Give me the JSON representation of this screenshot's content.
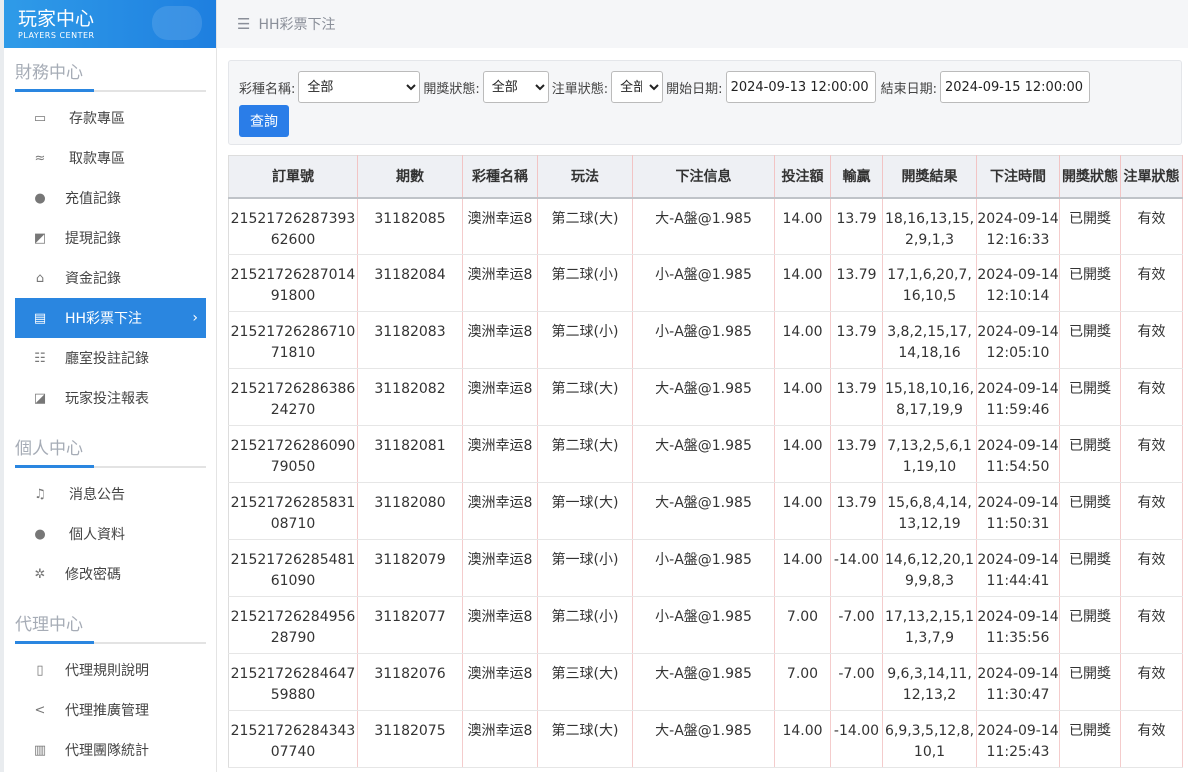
{
  "logo": {
    "title": "玩家中心",
    "subtitle": "PLAYERS CENTER"
  },
  "sidebar": {
    "sections": [
      {
        "title": "財務中心",
        "items": [
          {
            "label": "存款專區",
            "icon": "card-icon",
            "glyph": "▭",
            "indent": true
          },
          {
            "label": "取款專區",
            "icon": "hand-money-icon",
            "glyph": "≈",
            "indent": true
          },
          {
            "label": "充值記錄",
            "icon": "money-bag-icon",
            "glyph": "●"
          },
          {
            "label": "提現記錄",
            "icon": "wallet-icon",
            "glyph": "◩"
          },
          {
            "label": "資金記錄",
            "icon": "safe-icon",
            "glyph": "⌂"
          },
          {
            "label": "HH彩票下注",
            "icon": "list-icon",
            "glyph": "▤",
            "active": true
          },
          {
            "label": "廳室投註記錄",
            "icon": "bullet-list-icon",
            "glyph": "☷"
          },
          {
            "label": "玩家投注報表",
            "icon": "chart-icon",
            "glyph": "◪"
          }
        ]
      },
      {
        "title": "個人中心",
        "items": [
          {
            "label": "消息公告",
            "icon": "bell-icon",
            "glyph": "♫",
            "indent": true
          },
          {
            "label": "個人資料",
            "icon": "user-icon",
            "glyph": "●",
            "indent": true
          },
          {
            "label": "修改密碼",
            "icon": "gear-icon",
            "glyph": "✲"
          }
        ]
      },
      {
        "title": "代理中心",
        "items": [
          {
            "label": "代理規則說明",
            "icon": "document-icon",
            "glyph": "▯"
          },
          {
            "label": "代理推廣管理",
            "icon": "share-icon",
            "glyph": "<"
          },
          {
            "label": "代理團隊統計",
            "icon": "book-icon",
            "glyph": "▥"
          }
        ]
      }
    ]
  },
  "header": {
    "title": "HH彩票下注",
    "menu_icon": "hamburger-icon"
  },
  "filter": {
    "lottery_label": "彩種名稱:",
    "lottery_value": "全部",
    "draw_label": "開獎狀態:",
    "draw_value": "全部",
    "order_label": "注單狀態:",
    "order_value": "全部",
    "start_label": "開始日期:",
    "start_value": "2024-09-13 12:00:00",
    "end_label": "結束日期:",
    "end_value": "2024-09-15 12:00:00",
    "query_button": "查詢"
  },
  "accent": "#2a86e0",
  "table": {
    "columns": [
      "訂單號",
      "期數",
      "彩種名稱",
      "玩法",
      "下注信息",
      "投注額",
      "輸贏",
      "開獎結果",
      "下注時間",
      "開獎狀態",
      "注單狀態"
    ],
    "rows": [
      [
        "2152172628739362600",
        "31182085",
        "澳洲幸运8",
        "第二球(大)",
        "大-A盤@1.985",
        "14.00",
        "13.79",
        "18,16,13,15,2,9,1,3",
        "2024-09-14 12:16:33",
        "已開獎",
        "有效"
      ],
      [
        "2152172628701491800",
        "31182084",
        "澳洲幸运8",
        "第二球(小)",
        "小-A盤@1.985",
        "14.00",
        "13.79",
        "17,1,6,20,7,16,10,5",
        "2024-09-14 12:10:14",
        "已開獎",
        "有效"
      ],
      [
        "2152172628671071810",
        "31182083",
        "澳洲幸运8",
        "第二球(小)",
        "小-A盤@1.985",
        "14.00",
        "13.79",
        "3,8,2,15,17,14,18,16",
        "2024-09-14 12:05:10",
        "已開獎",
        "有效"
      ],
      [
        "2152172628638624270",
        "31182082",
        "澳洲幸运8",
        "第二球(大)",
        "大-A盤@1.985",
        "14.00",
        "13.79",
        "15,18,10,16,8,17,19,9",
        "2024-09-14 11:59:46",
        "已開獎",
        "有效"
      ],
      [
        "2152172628609079050",
        "31182081",
        "澳洲幸运8",
        "第二球(大)",
        "大-A盤@1.985",
        "14.00",
        "13.79",
        "7,13,2,5,6,11,19,10",
        "2024-09-14 11:54:50",
        "已開獎",
        "有效"
      ],
      [
        "2152172628583108710",
        "31182080",
        "澳洲幸运8",
        "第一球(大)",
        "大-A盤@1.985",
        "14.00",
        "13.79",
        "15,6,8,4,14,13,12,19",
        "2024-09-14 11:50:31",
        "已開獎",
        "有效"
      ],
      [
        "2152172628548161090",
        "31182079",
        "澳洲幸运8",
        "第一球(小)",
        "小-A盤@1.985",
        "14.00",
        "-14.00",
        "14,6,12,20,19,9,8,3",
        "2024-09-14 11:44:41",
        "已開獎",
        "有效"
      ],
      [
        "2152172628495628790",
        "31182077",
        "澳洲幸运8",
        "第二球(小)",
        "小-A盤@1.985",
        "7.00",
        "-7.00",
        "17,13,2,15,11,3,7,9",
        "2024-09-14 11:35:56",
        "已開獎",
        "有效"
      ],
      [
        "2152172628464759880",
        "31182076",
        "澳洲幸运8",
        "第三球(大)",
        "大-A盤@1.985",
        "7.00",
        "-7.00",
        "9,6,3,14,11,12,13,2",
        "2024-09-14 11:30:47",
        "已開獎",
        "有效"
      ],
      [
        "2152172628434307740",
        "31182075",
        "澳洲幸运8",
        "第二球(大)",
        "大-A盤@1.985",
        "14.00",
        "-14.00",
        "6,9,3,5,12,8,10,1",
        "2024-09-14 11:25:43",
        "已開獎",
        "有效"
      ]
    ]
  }
}
